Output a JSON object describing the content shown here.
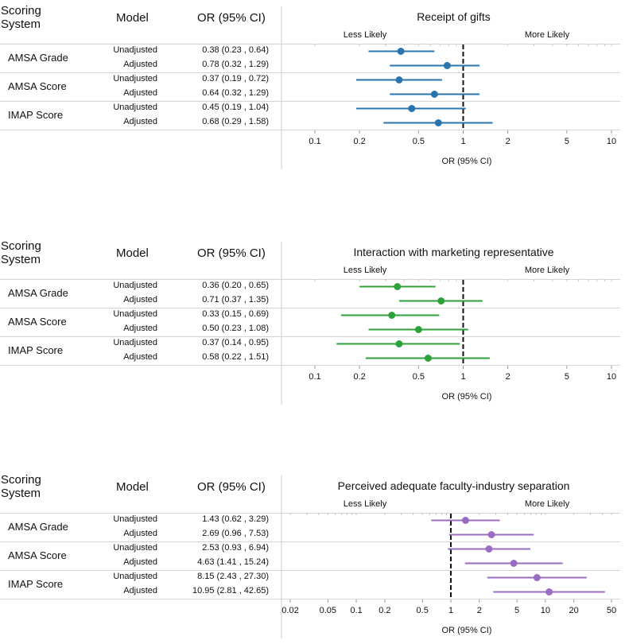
{
  "headers": {
    "system_line1": "Scoring",
    "system_line2": "System",
    "model": "Model",
    "or": "OR (95% CI)"
  },
  "axis_label": "OR (95% CI)",
  "left_label": "Less Likely",
  "right_label": "More Likely",
  "colors": {
    "p1": "#2a75ae",
    "p2": "#2ea23a",
    "p3": "#9a6cc2"
  },
  "chart_data": [
    {
      "type": "forest",
      "title": "Receipt of gifts",
      "xlabel": "OR (95% CI)",
      "scale": "log",
      "xlim": [
        0.1,
        10
      ],
      "ticks": [
        "0.1",
        "0.2",
        "0.5",
        "1",
        "2",
        "5",
        "10"
      ],
      "groups": [
        {
          "system": "AMSA Grade",
          "rows": [
            {
              "model": "Unadjusted",
              "or": 0.38,
              "lo": 0.23,
              "hi": 0.64,
              "label": "0.38 (0.23 , 0.64)"
            },
            {
              "model": "Adjusted",
              "or": 0.78,
              "lo": 0.32,
              "hi": 1.29,
              "label": "0.78 (0.32 , 1.29)"
            }
          ]
        },
        {
          "system": "AMSA Score",
          "rows": [
            {
              "model": "Unadjusted",
              "or": 0.37,
              "lo": 0.19,
              "hi": 0.72,
              "label": "0.37 (0.19 , 0.72)"
            },
            {
              "model": "Adjusted",
              "or": 0.64,
              "lo": 0.32,
              "hi": 1.29,
              "label": "0.64 (0.32 , 1.29)"
            }
          ]
        },
        {
          "system": "IMAP Score",
          "rows": [
            {
              "model": "Unadjusted",
              "or": 0.45,
              "lo": 0.19,
              "hi": 1.04,
              "label": "0.45 (0.19 , 1.04)"
            },
            {
              "model": "Adjusted",
              "or": 0.68,
              "lo": 0.29,
              "hi": 1.58,
              "label": "0.68 (0.29 , 1.58)"
            }
          ]
        }
      ]
    },
    {
      "type": "forest",
      "title": "Interaction with marketing representative",
      "xlabel": "OR (95% CI)",
      "scale": "log",
      "xlim": [
        0.1,
        10
      ],
      "ticks": [
        "0.1",
        "0.2",
        "0.5",
        "1",
        "2",
        "5",
        "10"
      ],
      "groups": [
        {
          "system": "AMSA Grade",
          "rows": [
            {
              "model": "Unadjusted",
              "or": 0.36,
              "lo": 0.2,
              "hi": 0.65,
              "label": "0.36 (0.20 , 0.65)"
            },
            {
              "model": "Adjusted",
              "or": 0.71,
              "lo": 0.37,
              "hi": 1.35,
              "label": "0.71 (0.37 , 1.35)"
            }
          ]
        },
        {
          "system": "AMSA Score",
          "rows": [
            {
              "model": "Unadjusted",
              "or": 0.33,
              "lo": 0.15,
              "hi": 0.69,
              "label": "0.33 (0.15 , 0.69)"
            },
            {
              "model": "Adjusted",
              "or": 0.5,
              "lo": 0.23,
              "hi": 1.08,
              "label": "0.50 (0.23 , 1.08)"
            }
          ]
        },
        {
          "system": "IMAP Score",
          "rows": [
            {
              "model": "Unadjusted",
              "or": 0.37,
              "lo": 0.14,
              "hi": 0.95,
              "label": "0.37 (0.14 , 0.95)"
            },
            {
              "model": "Adjusted",
              "or": 0.58,
              "lo": 0.22,
              "hi": 1.51,
              "label": "0.58 (0.22 , 1.51)"
            }
          ]
        }
      ]
    },
    {
      "type": "forest",
      "title": "Perceived adequate faculty-industry separation",
      "xlabel": "OR (95% CI)",
      "scale": "log",
      "xlim": [
        0.02,
        50
      ],
      "ticks": [
        "0.02",
        "0.05",
        "0.1",
        "0.2",
        "0.5",
        "1",
        "2",
        "5",
        "10",
        "20",
        "50"
      ],
      "groups": [
        {
          "system": "AMSA Grade",
          "rows": [
            {
              "model": "Unadjusted",
              "or": 1.43,
              "lo": 0.62,
              "hi": 3.29,
              "label": "1.43 (0.62 , 3.29)"
            },
            {
              "model": "Adjusted",
              "or": 2.69,
              "lo": 0.96,
              "hi": 7.53,
              "label": "2.69 (0.96 , 7.53)"
            }
          ]
        },
        {
          "system": "AMSA Score",
          "rows": [
            {
              "model": "Unadjusted",
              "or": 2.53,
              "lo": 0.93,
              "hi": 6.94,
              "label": "2.53 (0.93 , 6.94)"
            },
            {
              "model": "Adjusted",
              "or": 4.63,
              "lo": 1.41,
              "hi": 15.24,
              "label": "4.63 (1.41 , 15.24)"
            }
          ]
        },
        {
          "system": "IMAP Score",
          "rows": [
            {
              "model": "Unadjusted",
              "or": 8.15,
              "lo": 2.43,
              "hi": 27.3,
              "label": "8.15 (2.43 , 27.30)"
            },
            {
              "model": "Adjusted",
              "or": 10.95,
              "lo": 2.81,
              "hi": 42.65,
              "label": "10.95 (2.81 , 42.65)"
            }
          ]
        }
      ]
    }
  ]
}
